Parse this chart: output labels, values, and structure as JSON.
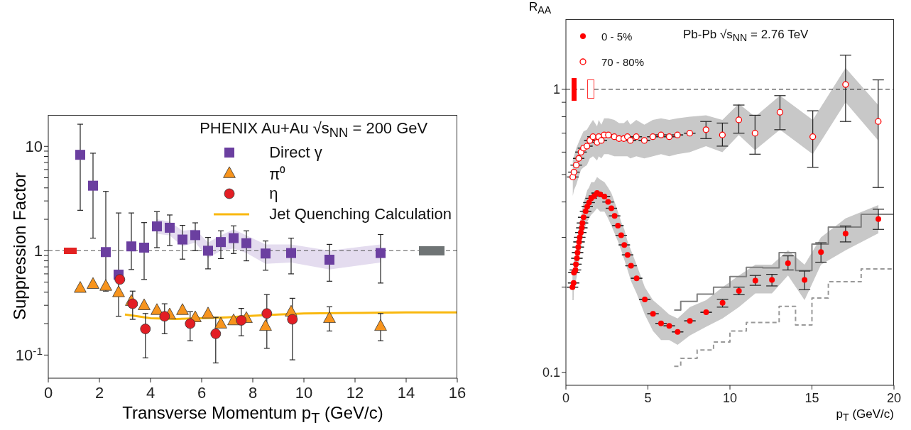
{
  "chart_data": [
    {
      "type": "scatter",
      "legend_title": "PHENIX  Au+Au √s$_{NN}$ = 200 GeV",
      "xlabel": "Transverse Momentum p$_{T}$ (GeV/c)",
      "ylabel": "Suppression Factor",
      "log": "y",
      "legend": "top right",
      "xlim": [
        0,
        16
      ],
      "xticks": [
        0,
        2,
        4,
        6,
        8,
        10,
        12,
        14,
        16
      ],
      "ylim": [
        0.06,
        20
      ],
      "yticks": [
        {
          "value": 0.1,
          "label": "10$^{-1}$"
        },
        {
          "value": 0.2,
          "label": null
        },
        {
          "value": 0.3,
          "label": null
        },
        {
          "value": 0.4,
          "label": null
        },
        {
          "value": 0.5,
          "label": null
        },
        {
          "value": 0.6,
          "label": null
        },
        {
          "value": 0.7,
          "label": null
        },
        {
          "value": 0.8,
          "label": null
        },
        {
          "value": 0.9,
          "label": null
        },
        1,
        {
          "value": 2,
          "label": null
        },
        {
          "value": 3,
          "label": null
        },
        {
          "value": 4,
          "label": null
        },
        {
          "value": 5,
          "label": null
        },
        {
          "value": 6,
          "label": null
        },
        {
          "value": 7,
          "label": null
        },
        {
          "value": 8,
          "label": null
        },
        {
          "value": 9,
          "label": null
        },
        10
      ],
      "ref_lines": [
        {
          "axis": "y",
          "value": 1,
          "color": "#555555",
          "line_style": "dashed"
        }
      ],
      "series": [
        {
          "name": "Direct γ",
          "type": "scatter",
          "marker": "square",
          "color": "#6b3fa0",
          "x": [
            1.25,
            1.75,
            2.25,
            2.75,
            3.25,
            3.75,
            4.25,
            4.75,
            5.25,
            5.75,
            6.25,
            6.75,
            7.25,
            7.75,
            8.5,
            9.5,
            11,
            13
          ],
          "values": [
            8.3,
            4.2,
            0.97,
            0.59,
            1.1,
            1.07,
            1.71,
            1.66,
            1.28,
            1.41,
            1.0,
            1.21,
            1.32,
            1.18,
            0.94,
            0.95,
            0.82,
            0.95
          ],
          "errors": [
            [
              2.44,
              16.3
            ],
            [
              1.32,
              8.6
            ],
            [
              0.41,
              3.7
            ],
            [
              0.235,
              2.3
            ],
            [
              0.66,
              2.3
            ],
            [
              0.53,
              1.86
            ],
            [
              1.07,
              2.37
            ],
            [
              1.12,
              2.2
            ],
            [
              0.83,
              1.75
            ],
            [
              1.0,
              1.85
            ],
            [
              0.67,
              1.34
            ],
            [
              0.84,
              1.55
            ],
            [
              0.94,
              1.73
            ],
            [
              0.8,
              1.55
            ],
            [
              0.65,
              1.24
            ],
            [
              0.6,
              1.32
            ],
            [
              0.51,
              1.15
            ],
            [
              0.49,
              1.43
            ]
          ],
          "lower": [
            null,
            null,
            null,
            null,
            null,
            null,
            1.45,
            1.4,
            1.1,
            1.2,
            0.85,
            1.0,
            1.05,
            0.95,
            0.75,
            0.77,
            0.66,
            0.77
          ],
          "upper": [
            null,
            null,
            null,
            null,
            null,
            null,
            2.0,
            1.9,
            1.55,
            1.6,
            1.2,
            1.4,
            1.6,
            1.4,
            1.15,
            1.15,
            1.0,
            1.15
          ]
        },
        {
          "name": "π⁰",
          "type": "scatter",
          "marker": "triangle",
          "color": "#f7941d",
          "x": [
            1.25,
            1.75,
            2.25,
            2.75,
            3.25,
            3.75,
            4.25,
            4.75,
            5.25,
            5.75,
            6.25,
            6.75,
            7.25,
            7.75,
            8.5,
            9.5,
            11,
            13
          ],
          "values": [
            0.44,
            0.48,
            0.46,
            0.4,
            0.33,
            0.3,
            0.27,
            0.245,
            0.27,
            0.23,
            0.25,
            0.2,
            0.215,
            0.226,
            0.19,
            0.26,
            0.226,
            0.19
          ],
          "errors": [
            null,
            null,
            null,
            null,
            null,
            null,
            null,
            null,
            null,
            null,
            null,
            null,
            null,
            null,
            null,
            null,
            [
              0.17,
              0.29
            ],
            [
              0.137,
              0.25
            ]
          ]
        },
        {
          "name": "η",
          "type": "scatter",
          "marker": "circle",
          "color": "#e31e24",
          "x": [
            2.8,
            3.3,
            3.8,
            4.55,
            5.55,
            6.55,
            7.55,
            8.55,
            9.55
          ],
          "values": [
            0.53,
            0.31,
            0.178,
            0.235,
            0.2,
            0.16,
            0.215,
            0.25,
            0.22
          ],
          "errors": [
            null,
            [
              0.22,
              0.41
            ],
            [
              0.094,
              0.25
            ],
            [
              0.16,
              0.31
            ],
            [
              0.137,
              0.26
            ],
            [
              0.084,
              0.23
            ],
            [
              0.153,
              0.28
            ],
            [
              0.116,
              0.38
            ],
            [
              0.09,
              0.35
            ]
          ]
        },
        {
          "name": "Jet Quenching Calculation",
          "type": "line",
          "marker": "none",
          "color": "#f9b80f",
          "x": [
            3,
            3.5,
            4,
            5,
            6,
            7,
            8,
            9,
            10,
            12,
            14,
            16
          ],
          "values": [
            0.245,
            0.235,
            0.225,
            0.222,
            0.225,
            0.23,
            0.238,
            0.245,
            0.25,
            0.253,
            0.256,
            0.256
          ]
        }
      ]
    },
    {
      "type": "scatter",
      "xlabel": "p$_{T}$ (GeV/c)",
      "ylabel": "R$_{AA}$",
      "log": "y",
      "legend": "top left",
      "annotations": [
        "Pb-Pb √s$_{NN}$ = 2.76 TeV"
      ],
      "xlim": [
        0,
        20
      ],
      "xticks": [
        0,
        5,
        10,
        15,
        20
      ],
      "ylim": [
        0.09,
        1.77
      ],
      "yticks": [
        0.1,
        {
          "value": 0.2,
          "label": null
        },
        {
          "value": 0.3,
          "label": null
        },
        {
          "value": 0.4,
          "label": null
        },
        {
          "value": 0.5,
          "label": null
        },
        {
          "value": 0.6,
          "label": null
        },
        {
          "value": 0.7,
          "label": null
        },
        {
          "value": 0.8,
          "label": null
        },
        {
          "value": 0.9,
          "label": null
        },
        1
      ],
      "ref_lines": [
        {
          "axis": "y",
          "value": 1,
          "color": "#222222",
          "line_style": "dashed"
        }
      ],
      "series": [
        {
          "name": "0 - 5%",
          "type": "scatter",
          "marker": "circle",
          "color": "#ff0000",
          "x": [
            0.4,
            0.47,
            0.49,
            0.58,
            0.61,
            0.67,
            0.71,
            0.75,
            0.8,
            0.84,
            0.91,
            0.97,
            1.01,
            1.08,
            1.2,
            1.3,
            1.41,
            1.54,
            1.73,
            1.9,
            2.09,
            2.35,
            2.57,
            2.77,
            2.97,
            3.17,
            3.37,
            3.56,
            3.76,
            3.97,
            4.31,
            4.81,
            5.31,
            5.8,
            6.3,
            6.81,
            7.56,
            8.55,
            9.55,
            10.55,
            11.55,
            12.56,
            13.54,
            14.55,
            15.55,
            17.05,
            19.05
          ],
          "values": [
            0.2,
            0.207,
            0.225,
            0.23,
            0.241,
            0.253,
            0.265,
            0.277,
            0.289,
            0.3,
            0.312,
            0.324,
            0.337,
            0.353,
            0.371,
            0.385,
            0.398,
            0.412,
            0.42,
            0.43,
            0.425,
            0.418,
            0.4,
            0.38,
            0.357,
            0.33,
            0.305,
            0.282,
            0.26,
            0.238,
            0.215,
            0.181,
            0.161,
            0.149,
            0.146,
            0.139,
            0.152,
            0.163,
            0.176,
            0.194,
            0.211,
            0.212,
            0.243,
            0.212,
            0.266,
            0.309,
            0.348
          ],
          "errors": [
            null,
            null,
            null,
            null,
            null,
            null,
            null,
            null,
            null,
            null,
            null,
            null,
            null,
            null,
            null,
            null,
            null,
            null,
            null,
            null,
            null,
            null,
            null,
            null,
            null,
            null,
            null,
            null,
            null,
            null,
            null,
            null,
            null,
            null,
            null,
            null,
            null,
            null,
            [
              0.17,
              0.181
            ],
            [
              0.188,
              0.2
            ],
            [
              0.203,
              0.22
            ],
            [
              0.202,
              0.222
            ],
            [
              0.23,
              0.258
            ],
            [
              0.196,
              0.228
            ],
            [
              0.245,
              0.287
            ],
            [
              0.289,
              0.329
            ],
            [
              0.32,
              0.377
            ]
          ],
          "lower": [
            0.18,
            0.18,
            0.2,
            0.2,
            0.21,
            0.22,
            0.23,
            0.24,
            0.25,
            0.26,
            0.27,
            0.29,
            0.3,
            0.31,
            0.33,
            0.34,
            0.35,
            0.36,
            0.37,
            0.38,
            0.37,
            0.37,
            0.35,
            0.33,
            0.31,
            0.29,
            0.27,
            0.25,
            0.23,
            0.21,
            0.19,
            0.16,
            0.14,
            0.13,
            0.13,
            0.125,
            0.135,
            0.145,
            0.155,
            0.17,
            0.19,
            0.19,
            0.22,
            0.18,
            0.24,
            0.27,
            0.31
          ],
          "upper": [
            0.23,
            0.23,
            0.25,
            0.26,
            0.27,
            0.29,
            0.3,
            0.31,
            0.33,
            0.34,
            0.35,
            0.37,
            0.38,
            0.4,
            0.42,
            0.44,
            0.45,
            0.47,
            0.47,
            0.49,
            0.48,
            0.47,
            0.45,
            0.43,
            0.4,
            0.37,
            0.34,
            0.32,
            0.29,
            0.27,
            0.24,
            0.2,
            0.18,
            0.17,
            0.16,
            0.155,
            0.17,
            0.18,
            0.2,
            0.22,
            0.24,
            0.24,
            0.27,
            0.24,
            0.3,
            0.35,
            0.39
          ]
        },
        {
          "name": "70 - 80%",
          "type": "scatter",
          "marker": "circle",
          "color": "#ff0000",
          "x": [
            0.42,
            0.49,
            0.63,
            0.78,
            0.92,
            1.07,
            1.28,
            1.46,
            1.65,
            1.9,
            2.0,
            2.16,
            2.33,
            2.59,
            2.95,
            3.24,
            3.53,
            3.75,
            3.93,
            4.29,
            4.78,
            5.3,
            5.8,
            6.3,
            6.8,
            7.55,
            8.54,
            9.54,
            10.54,
            11.53,
            13.05,
            15.05,
            17.05,
            19.04
          ],
          "values": [
            0.49,
            0.51,
            0.54,
            0.57,
            0.6,
            0.62,
            0.63,
            0.66,
            0.68,
            0.65,
            0.68,
            0.66,
            0.69,
            0.69,
            0.68,
            0.67,
            0.67,
            0.68,
            0.66,
            0.68,
            0.66,
            0.68,
            0.69,
            0.68,
            0.69,
            0.7,
            0.72,
            0.69,
            0.78,
            0.7,
            0.83,
            0.68,
            1.04,
            0.77
          ],
          "errors": [
            null,
            null,
            null,
            null,
            null,
            null,
            null,
            null,
            null,
            null,
            null,
            null,
            null,
            null,
            null,
            null,
            null,
            null,
            null,
            null,
            null,
            null,
            null,
            null,
            null,
            null,
            [
              0.67,
              0.77
            ],
            [
              0.63,
              0.76
            ],
            [
              0.7,
              0.88
            ],
            [
              0.59,
              0.81
            ],
            [
              0.72,
              0.95
            ],
            [
              0.53,
              0.84
            ],
            [
              0.77,
              1.32
            ],
            [
              0.45,
              1.08
            ]
          ],
          "lower": [
            0.42,
            0.44,
            0.46,
            0.49,
            0.52,
            0.53,
            0.54,
            0.57,
            0.58,
            0.56,
            0.58,
            0.57,
            0.59,
            0.59,
            0.58,
            0.58,
            0.58,
            0.58,
            0.57,
            0.58,
            0.57,
            0.58,
            0.59,
            0.58,
            0.59,
            0.6,
            0.63,
            0.6,
            0.69,
            0.61,
            0.72,
            0.59,
            0.9,
            0.66
          ],
          "upper": [
            0.56,
            0.58,
            0.62,
            0.65,
            0.68,
            0.71,
            0.72,
            0.75,
            0.78,
            0.74,
            0.78,
            0.75,
            0.79,
            0.79,
            0.78,
            0.76,
            0.76,
            0.78,
            0.75,
            0.78,
            0.75,
            0.78,
            0.79,
            0.78,
            0.79,
            0.8,
            0.81,
            0.78,
            0.89,
            0.8,
            0.95,
            0.78,
            1.19,
            0.88
          ]
        },
        {
          "type": "step",
          "color": "#808080",
          "marker": "none",
          "x": [
            6.6,
            7,
            8,
            9,
            10,
            11,
            12,
            13,
            14,
            15,
            16,
            18,
            20
          ],
          "values": [
            0.166,
            0.178,
            0.189,
            0.2,
            0.218,
            0.235,
            0.234,
            0.265,
            0.229,
            0.284,
            0.326,
            0.362,
            0.362
          ]
        },
        {
          "type": "step",
          "color": "#999999",
          "marker": "none",
          "line_style": "dashed",
          "x": [
            6.6,
            7,
            8,
            9,
            10,
            11,
            13,
            14,
            15,
            16,
            18,
            20
          ],
          "values": [
            0.105,
            0.112,
            0.12,
            0.128,
            0.14,
            0.15,
            0.171,
            0.147,
            0.183,
            0.209,
            0.232,
            0.232
          ]
        }
      ]
    }
  ]
}
